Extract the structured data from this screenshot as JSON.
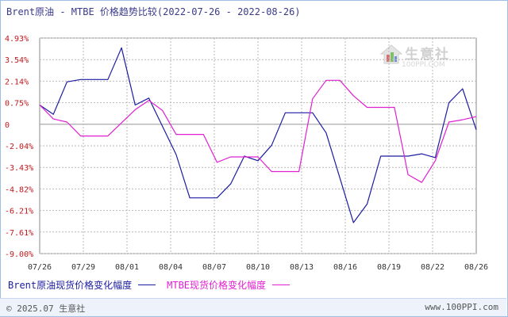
{
  "header": {
    "title": "Brent原油 - MTBE 价格趋势比较(2022-07-26 - 2022-08-26)"
  },
  "watermark": {
    "brand": "生意社",
    "url": "100PPI.COM"
  },
  "legend": {
    "series1": "Brent原油现货价格变化幅度",
    "series2": "MTBE现货价格变化幅度"
  },
  "footer": {
    "copyright": "© 2025.07 生意社",
    "site": "www.100PPI.com"
  },
  "colors": {
    "series1": "#1c1ca0",
    "series2": "#e020d0",
    "grid": "#b8b8b8",
    "zero_line": "#a0a0a0",
    "axis_text": "#c0181c",
    "date_text": "#333333"
  },
  "chart_data": {
    "type": "line",
    "title": "Brent原油 - MTBE 价格趋势比较(2022-07-26 - 2022-08-26)",
    "x_tick_labels": [
      "07/26",
      "07/29",
      "08/01",
      "08/04",
      "08/07",
      "08/10",
      "08/13",
      "08/16",
      "08/19",
      "08/22",
      "08/26"
    ],
    "y_tick_labels": [
      "4.93%",
      "3.54%",
      "2.14%",
      "0.75%",
      "0",
      "-2.04%",
      "-3.43%",
      "-4.82%",
      "-6.21%",
      "-7.61%",
      "-9.00%"
    ],
    "ylim": [
      -9.0,
      4.93
    ],
    "grid": true,
    "legend_position": "bottom",
    "series": [
      {
        "name": "Brent原油现货价格变化幅度",
        "color": "#1c1ca0",
        "points": [
          {
            "d": 0,
            "v": 0.6
          },
          {
            "d": 1,
            "v": 0.0
          },
          {
            "d": 2,
            "v": 2.1
          },
          {
            "d": 3,
            "v": 2.25
          },
          {
            "d": 5,
            "v": 2.25
          },
          {
            "d": 6,
            "v": 4.3
          },
          {
            "d": 7,
            "v": 0.6
          },
          {
            "d": 8,
            "v": 1.05
          },
          {
            "d": 10,
            "v": -2.6
          },
          {
            "d": 11,
            "v": -5.4
          },
          {
            "d": 13,
            "v": -5.4
          },
          {
            "d": 14,
            "v": -4.5
          },
          {
            "d": 15,
            "v": -2.7
          },
          {
            "d": 16,
            "v": -3.0
          },
          {
            "d": 17,
            "v": -2.0
          },
          {
            "d": 18,
            "v": 0.1
          },
          {
            "d": 20,
            "v": 0.1
          },
          {
            "d": 21,
            "v": -1.2
          },
          {
            "d": 23,
            "v": -7.0
          },
          {
            "d": 24,
            "v": -5.8
          },
          {
            "d": 25,
            "v": -2.7
          },
          {
            "d": 27,
            "v": -2.7
          },
          {
            "d": 28,
            "v": -2.55
          },
          {
            "d": 29,
            "v": -2.8
          },
          {
            "d": 30,
            "v": 0.75
          },
          {
            "d": 31,
            "v": 1.65
          },
          {
            "d": 32,
            "v": -1.0
          }
        ]
      },
      {
        "name": "MTBE现货价格变化幅度",
        "color": "#e020d0",
        "points": [
          {
            "d": 0,
            "v": 0.6
          },
          {
            "d": 1,
            "v": -0.3
          },
          {
            "d": 2,
            "v": -0.5
          },
          {
            "d": 3,
            "v": -1.4
          },
          {
            "d": 5,
            "v": -1.4
          },
          {
            "d": 7,
            "v": 0.3
          },
          {
            "d": 8,
            "v": 0.9
          },
          {
            "d": 9,
            "v": 0.25
          },
          {
            "d": 10,
            "v": -1.3
          },
          {
            "d": 12,
            "v": -1.3
          },
          {
            "d": 13,
            "v": -3.1
          },
          {
            "d": 14,
            "v": -2.75
          },
          {
            "d": 16,
            "v": -2.75
          },
          {
            "d": 17,
            "v": -3.7
          },
          {
            "d": 19,
            "v": -3.7
          },
          {
            "d": 20,
            "v": 1.0
          },
          {
            "d": 21,
            "v": 2.2
          },
          {
            "d": 22,
            "v": 2.2
          },
          {
            "d": 23,
            "v": 1.2
          },
          {
            "d": 24,
            "v": 0.45
          },
          {
            "d": 26,
            "v": 0.45
          },
          {
            "d": 27,
            "v": -3.9
          },
          {
            "d": 28,
            "v": -4.4
          },
          {
            "d": 29,
            "v": -3.0
          },
          {
            "d": 30,
            "v": -0.5
          },
          {
            "d": 31,
            "v": -0.35
          },
          {
            "d": 32,
            "v": -0.15
          }
        ]
      }
    ]
  }
}
